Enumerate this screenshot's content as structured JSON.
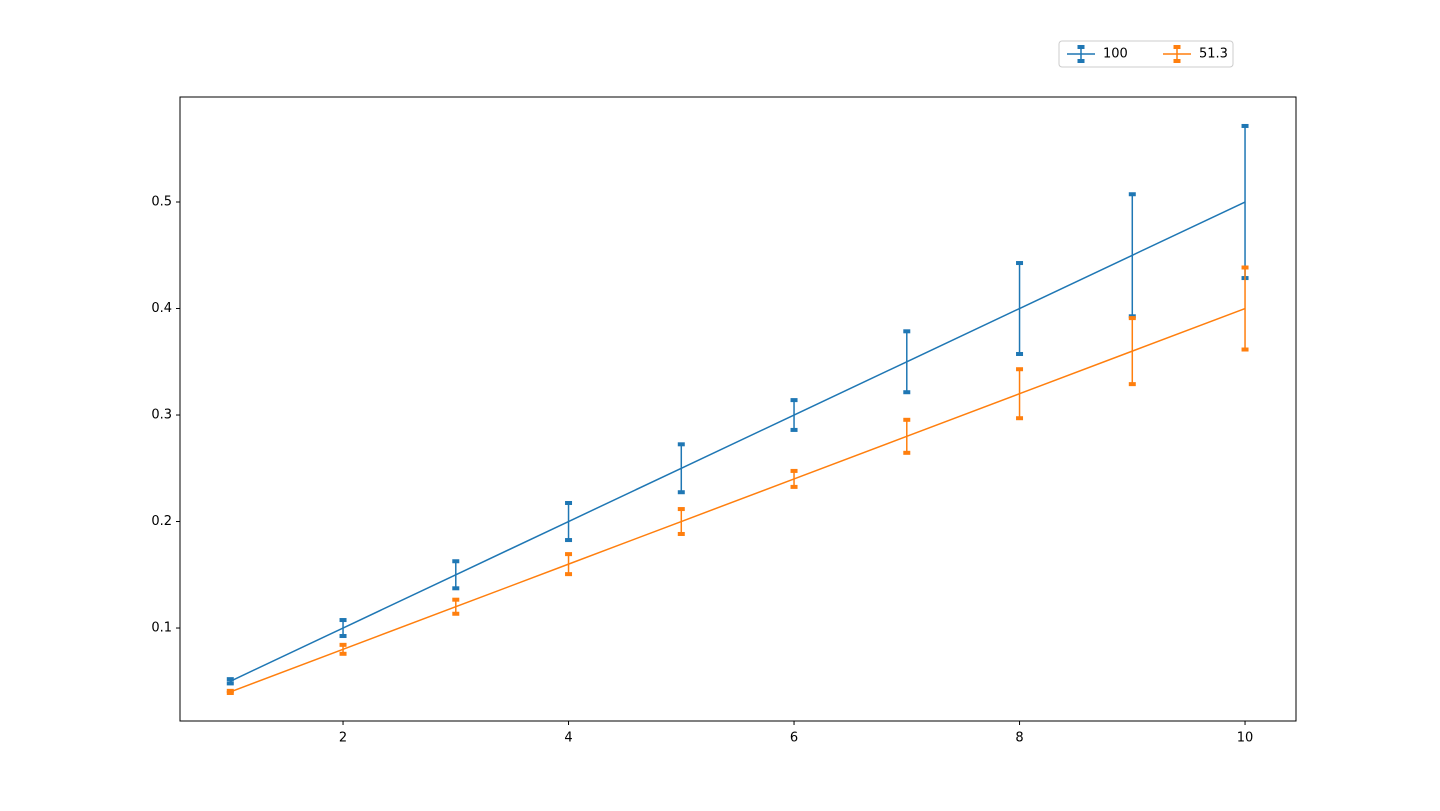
{
  "chart_data": {
    "type": "errorbar",
    "x": [
      1,
      2,
      3,
      4,
      5,
      6,
      7,
      8,
      9,
      10
    ],
    "series": [
      {
        "name": "100",
        "color": "#1f77b4",
        "values": [
          0.05,
          0.1,
          0.15,
          0.2,
          0.25,
          0.3,
          0.35,
          0.4,
          0.45,
          0.5
        ],
        "errors": [
          0.002,
          0.0075,
          0.0127,
          0.0174,
          0.0225,
          0.014,
          0.0286,
          0.0427,
          0.0573,
          0.0714
        ]
      },
      {
        "name": "51.3",
        "color": "#ff7f0e",
        "values": [
          0.04,
          0.08,
          0.12,
          0.16,
          0.2,
          0.24,
          0.28,
          0.32,
          0.36,
          0.4
        ],
        "errors": [
          0.001,
          0.0042,
          0.0066,
          0.0094,
          0.0117,
          0.0075,
          0.0155,
          0.023,
          0.031,
          0.0385
        ]
      }
    ],
    "xlim": [
      0.554,
      10.452
    ],
    "ylim": [
      0.0127,
      0.5986
    ],
    "xticks": [
      2,
      4,
      6,
      8,
      10
    ],
    "yticks": [
      0.1,
      0.2,
      0.3,
      0.4,
      0.5
    ],
    "legend_loc": "upper right",
    "grid": false
  }
}
